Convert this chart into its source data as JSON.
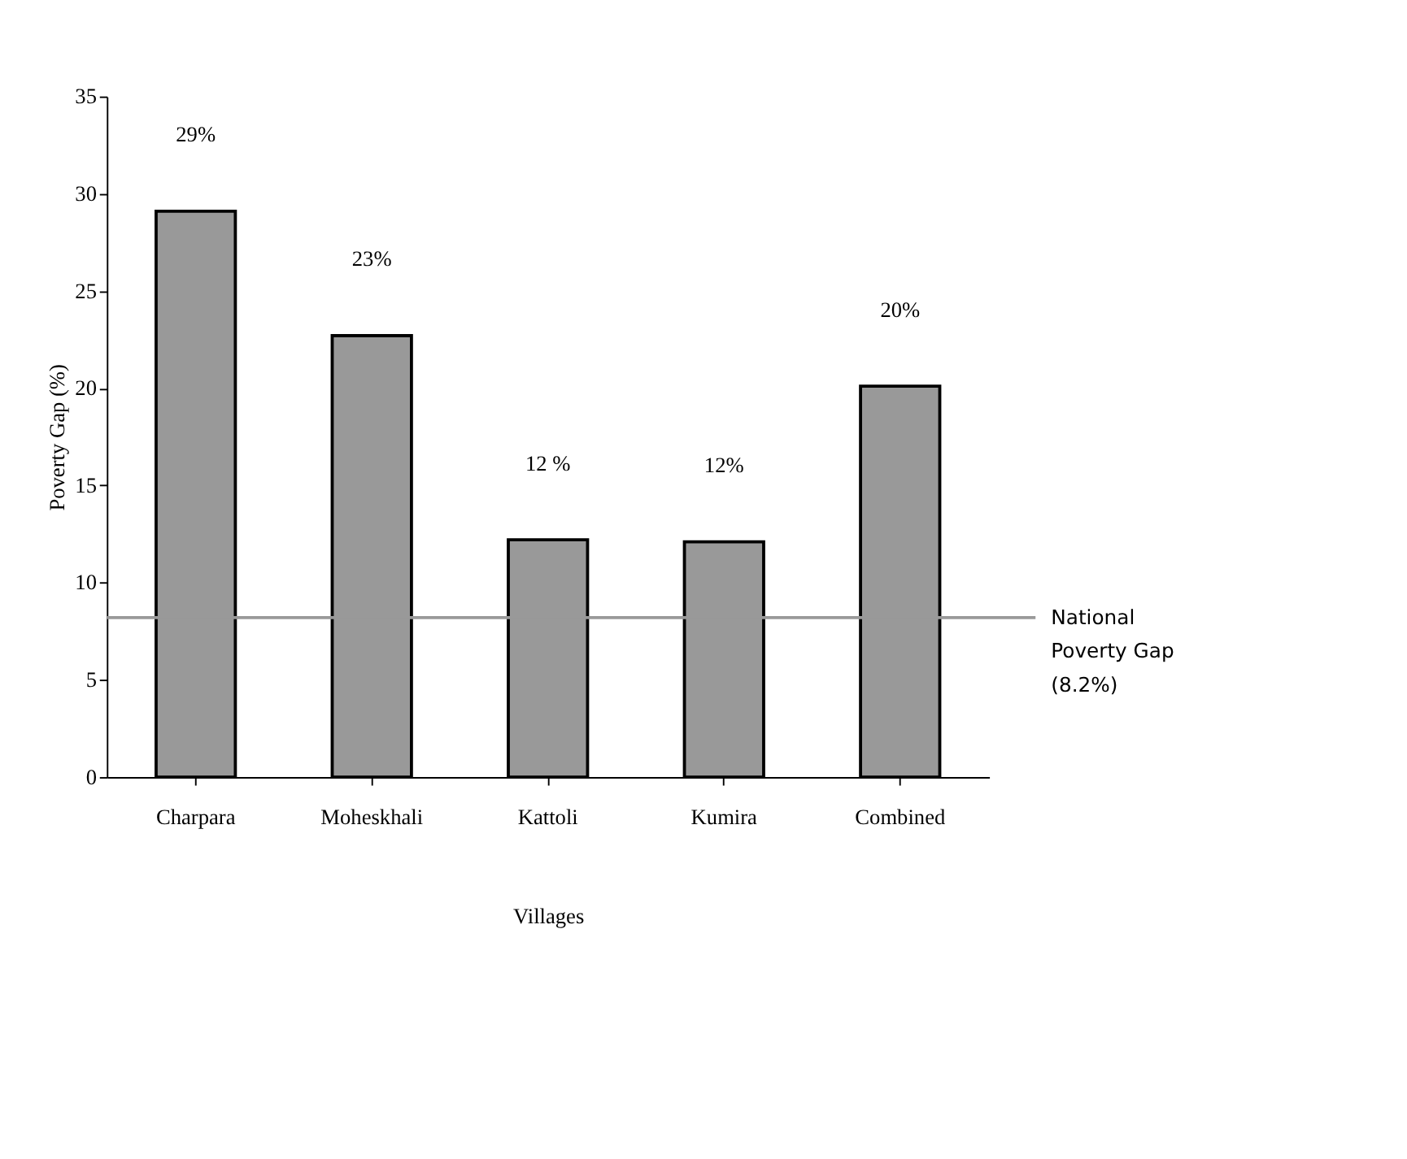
{
  "chart_data": {
    "type": "bar",
    "xlabel": "Villages",
    "ylabel": "Poverty Gap (%)",
    "categories": [
      "Charpara",
      "Moheskhali",
      "Kattoli",
      "Kumira",
      "Combined"
    ],
    "values": [
      29.1,
      22.7,
      12.2,
      12.1,
      20.1
    ],
    "value_labels": [
      "29%",
      "23%",
      "12 %",
      "12%",
      "20%"
    ],
    "color": "#999999",
    "ylim": [
      0,
      35
    ],
    "yticks": [
      0,
      5,
      10,
      15,
      20,
      25,
      30,
      35
    ],
    "grid": false,
    "ref_lines": [
      {
        "axis": "y",
        "value": 8.2,
        "label": "National\nPoverty Gap\n(8.2%)",
        "color": "#999999"
      }
    ]
  }
}
